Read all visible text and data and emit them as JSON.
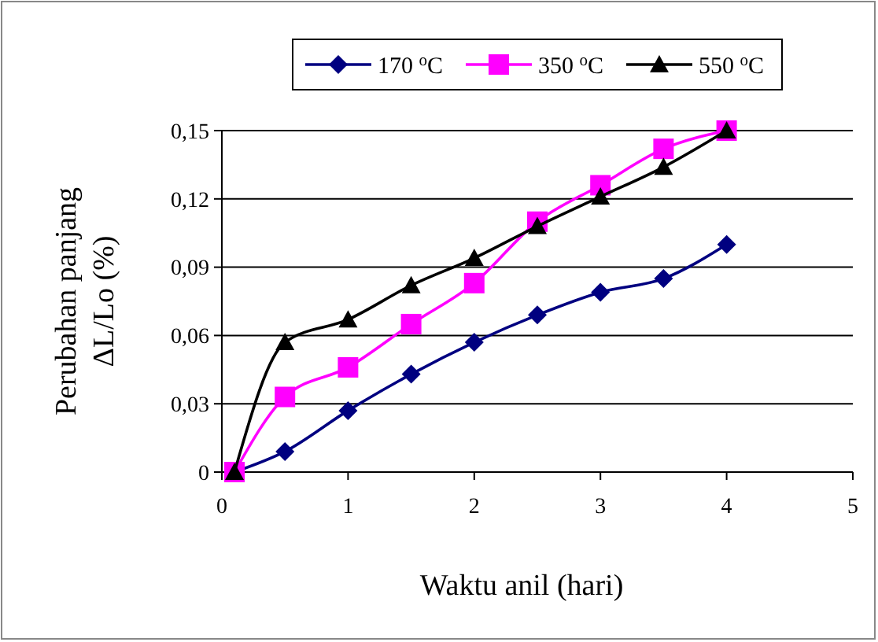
{
  "chart_data": {
    "type": "line",
    "xlabel": "Waktu anil (hari)",
    "ylabel": "Perubahan panjang\nΔL/Lo (%)",
    "x": [
      0.1,
      0.5,
      1,
      1.5,
      2,
      2.5,
      3,
      3.5,
      4
    ],
    "series": [
      {
        "name": "170 $^{o}$C",
        "color": "#000080",
        "marker": "diamond",
        "values": [
          0,
          0.009,
          0.027,
          0.043,
          0.057,
          0.069,
          0.079,
          0.085,
          0.1
        ]
      },
      {
        "name": "350 $^{o}$C",
        "color": "#ff00ff",
        "marker": "square",
        "values": [
          0,
          0.033,
          0.046,
          0.065,
          0.083,
          0.11,
          0.126,
          0.142,
          0.15
        ]
      },
      {
        "name": "550 $^{o}$C",
        "color": "#000000",
        "marker": "triangle",
        "values": [
          0,
          0.057,
          0.067,
          0.082,
          0.094,
          0.108,
          0.121,
          0.134,
          0.15
        ]
      }
    ],
    "xlim": [
      0,
      5
    ],
    "xticks": [
      0,
      1,
      2,
      3,
      4,
      5
    ],
    "ylim": [
      0,
      0.15
    ],
    "yticks": [
      0,
      {
        "value": 0.03,
        "label": "0,03"
      },
      {
        "value": 0.06,
        "label": "0,06"
      },
      {
        "value": 0.09,
        "label": "0,09"
      },
      {
        "value": 0.12,
        "label": "0,12"
      },
      {
        "value": 0.15,
        "label": "0,15"
      }
    ],
    "grid": "y",
    "legend": "top",
    "line_style": "solid"
  }
}
